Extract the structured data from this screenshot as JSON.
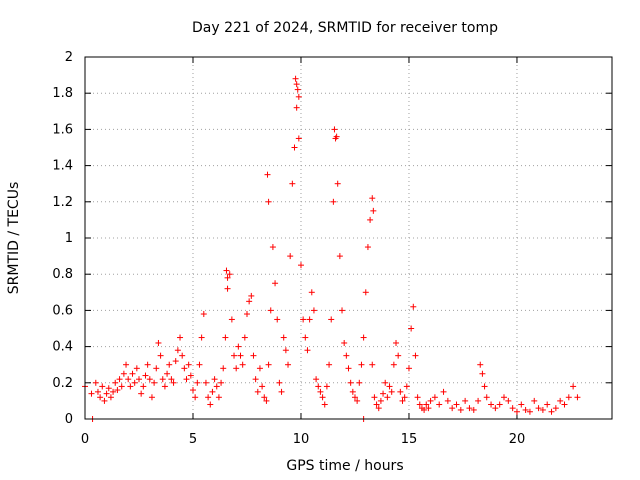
{
  "chart_data": {
    "type": "scatter",
    "title": "Day 221 of 2024, SRMTID for receiver tomp",
    "xlabel": "GPS time / hours",
    "ylabel": "SRMTID / TECUs",
    "xlim": [
      0,
      24.4
    ],
    "ylim": [
      0,
      2
    ],
    "xticks": [
      0,
      5,
      10,
      15,
      20
    ],
    "xtick_labels": [
      "0",
      "5",
      "10",
      "15",
      "20"
    ],
    "yticks": [
      0,
      0.2,
      0.4,
      0.6,
      0.8,
      1,
      1.2,
      1.4,
      1.6,
      1.8,
      2
    ],
    "ytick_labels": [
      "0",
      "0.2",
      "0.4",
      "0.6",
      "0.8",
      "1",
      "1.2",
      "1.4",
      "1.6",
      "1.8",
      "2"
    ],
    "grid": true,
    "marker": "plus",
    "color": "#ff0000",
    "series": [
      {
        "name": "SRMTID",
        "x": [
          0.0,
          0.3,
          0.5,
          0.6,
          0.7,
          0.8,
          0.9,
          1.0,
          1.1,
          1.2,
          1.3,
          1.4,
          1.5,
          1.6,
          1.7,
          1.8,
          1.9,
          2.0,
          2.1,
          2.2,
          2.3,
          2.4,
          2.5,
          2.6,
          2.7,
          2.8,
          2.9,
          3.0,
          3.1,
          3.2,
          3.3,
          3.4,
          3.5,
          3.6,
          3.7,
          3.8,
          3.9,
          4.0,
          4.1,
          4.2,
          4.3,
          4.4,
          4.5,
          4.6,
          4.7,
          4.8,
          4.9,
          5.0,
          5.1,
          5.2,
          5.3,
          5.4,
          5.5,
          5.6,
          5.7,
          5.8,
          5.9,
          6.0,
          6.1,
          6.2,
          6.3,
          6.4,
          6.5,
          6.6,
          6.7,
          6.8,
          6.9,
          7.0,
          7.1,
          7.2,
          7.3,
          7.4,
          7.5,
          7.6,
          7.7,
          7.8,
          7.9,
          8.0,
          8.1,
          8.2,
          8.3,
          8.4,
          8.5,
          8.6,
          8.7,
          8.8,
          8.9,
          9.0,
          9.1,
          9.2,
          9.3,
          9.4,
          9.5,
          9.6,
          9.7,
          9.8,
          9.9,
          10.0,
          10.1,
          10.2,
          10.3,
          10.4,
          10.5,
          10.6,
          10.7,
          10.8,
          10.9,
          11.0,
          11.1,
          11.2,
          11.3,
          11.4,
          11.5,
          11.6,
          11.7,
          11.8,
          11.9,
          12.0,
          12.1,
          12.2,
          12.3,
          12.4,
          12.5,
          12.6,
          12.7,
          12.8,
          12.9,
          13.0,
          13.1,
          13.2,
          13.3,
          13.4,
          13.5,
          13.6,
          13.7,
          13.8,
          13.9,
          14.0,
          14.1,
          14.2,
          14.3,
          14.4,
          14.5,
          14.6,
          14.7,
          14.8,
          14.9,
          15.0,
          15.1,
          15.2,
          15.3,
          15.4,
          15.5,
          15.6,
          15.7,
          15.8,
          15.9,
          16.0,
          16.2,
          16.4,
          16.6,
          16.8,
          17.0,
          17.2,
          17.4,
          17.6,
          17.8,
          18.0,
          18.2,
          18.3,
          18.4,
          18.5,
          18.6,
          18.8,
          19.0,
          19.2,
          19.4,
          19.6,
          19.8,
          20.0,
          20.2,
          20.4,
          20.6,
          20.8,
          21.0,
          21.2,
          21.4,
          21.6,
          21.8,
          22.0,
          22.2,
          22.4,
          22.6,
          22.8,
          9.75,
          9.8,
          9.85,
          9.9,
          11.55,
          11.65,
          13.3,
          13.35,
          8.45,
          8.5,
          6.55,
          6.6,
          0.35,
          12.9
        ],
        "y": [
          0.18,
          0.14,
          0.2,
          0.15,
          0.12,
          0.18,
          0.1,
          0.14,
          0.17,
          0.12,
          0.15,
          0.2,
          0.16,
          0.22,
          0.18,
          0.25,
          0.3,
          0.22,
          0.18,
          0.25,
          0.2,
          0.28,
          0.22,
          0.14,
          0.18,
          0.24,
          0.3,
          0.22,
          0.12,
          0.2,
          0.28,
          0.42,
          0.35,
          0.22,
          0.18,
          0.25,
          0.3,
          0.22,
          0.2,
          0.32,
          0.38,
          0.45,
          0.35,
          0.28,
          0.22,
          0.3,
          0.24,
          0.16,
          0.12,
          0.2,
          0.3,
          0.45,
          0.58,
          0.2,
          0.12,
          0.08,
          0.15,
          0.22,
          0.18,
          0.12,
          0.2,
          0.28,
          0.45,
          0.72,
          0.8,
          0.55,
          0.35,
          0.28,
          0.4,
          0.35,
          0.3,
          0.45,
          0.58,
          0.65,
          0.68,
          0.35,
          0.22,
          0.15,
          0.28,
          0.18,
          0.12,
          0.1,
          0.3,
          0.6,
          0.95,
          0.75,
          0.55,
          0.2,
          0.15,
          0.45,
          0.38,
          0.3,
          0.9,
          1.3,
          1.5,
          1.72,
          1.55,
          0.85,
          0.55,
          0.45,
          0.38,
          0.55,
          0.7,
          0.6,
          0.22,
          0.18,
          0.15,
          0.12,
          0.08,
          0.18,
          0.3,
          0.55,
          1.2,
          1.55,
          1.3,
          0.9,
          0.6,
          0.42,
          0.35,
          0.28,
          0.2,
          0.15,
          0.12,
          0.1,
          0.2,
          0.3,
          0.45,
          0.7,
          0.95,
          1.1,
          0.3,
          0.12,
          0.08,
          0.06,
          0.1,
          0.14,
          0.2,
          0.12,
          0.18,
          0.15,
          0.3,
          0.42,
          0.35,
          0.15,
          0.1,
          0.12,
          0.18,
          0.28,
          0.5,
          0.62,
          0.35,
          0.12,
          0.08,
          0.06,
          0.05,
          0.08,
          0.06,
          0.1,
          0.12,
          0.08,
          0.15,
          0.1,
          0.06,
          0.08,
          0.05,
          0.1,
          0.06,
          0.05,
          0.1,
          0.3,
          0.25,
          0.18,
          0.12,
          0.08,
          0.06,
          0.08,
          0.12,
          0.1,
          0.06,
          0.04,
          0.08,
          0.05,
          0.04,
          0.1,
          0.06,
          0.05,
          0.08,
          0.04,
          0.06,
          0.1,
          0.08,
          0.12,
          0.18,
          0.12,
          1.88,
          1.85,
          1.82,
          1.78,
          1.6,
          1.56,
          1.22,
          1.15,
          1.35,
          1.2,
          0.82,
          0.78,
          0.0,
          0.0
        ]
      }
    ]
  }
}
